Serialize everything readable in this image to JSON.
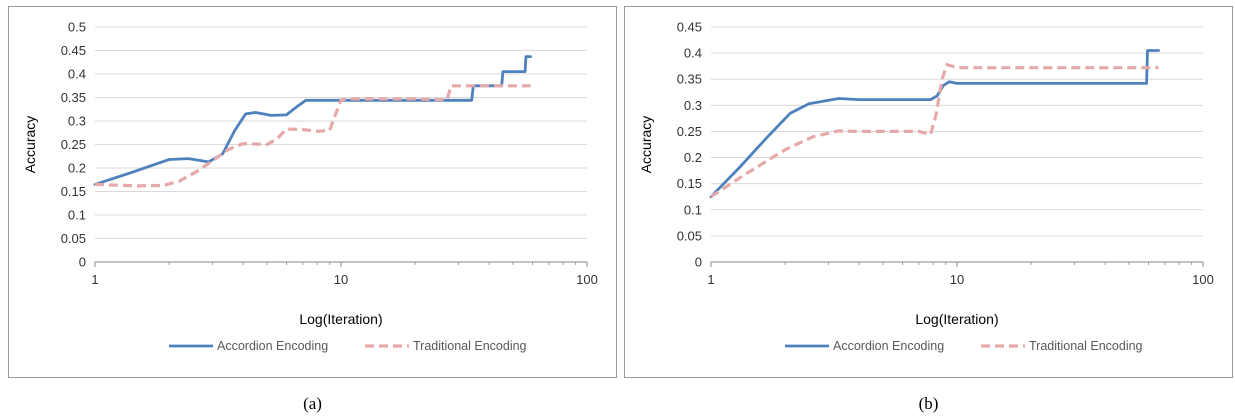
{
  "colors": {
    "accordion": "#4f81bd",
    "traditional": "#e6a9a9",
    "grid": "#d9d9d9",
    "axis": "#868686"
  },
  "chart_data": [
    {
      "type": "line",
      "caption": "(a)",
      "xlabel": "Log(Iteration)",
      "ylabel": "Accuracy",
      "x_scale": "log",
      "xlim": [
        1,
        100
      ],
      "ylim": [
        0,
        0.5
      ],
      "xticks": [
        "1",
        "10",
        "100"
      ],
      "yticks": [
        "0",
        "0.05",
        "0.1",
        "0.15",
        "0.2",
        "0.25",
        "0.3",
        "0.35",
        "0.4",
        "0.45",
        "0.5"
      ],
      "legend": "bottom",
      "grid": true,
      "series": [
        {
          "name": "Accordion Encoding",
          "style": "solid",
          "points": [
            [
              1,
              0.165
            ],
            [
              1.4,
              0.19
            ],
            [
              2,
              0.218
            ],
            [
              2.4,
              0.22
            ],
            [
              2.9,
              0.213
            ],
            [
              3.3,
              0.23
            ],
            [
              3.7,
              0.28
            ],
            [
              4.1,
              0.315
            ],
            [
              4.5,
              0.318
            ],
            [
              5.2,
              0.312
            ],
            [
              6.0,
              0.313
            ],
            [
              6.6,
              0.33
            ],
            [
              7.2,
              0.344
            ],
            [
              8,
              0.344
            ],
            [
              10,
              0.344
            ],
            [
              20,
              0.344
            ],
            [
              34,
              0.344
            ],
            [
              34.5,
              0.375
            ],
            [
              45,
              0.375
            ],
            [
              45.5,
              0.405
            ],
            [
              56,
              0.405
            ],
            [
              56.5,
              0.437
            ],
            [
              59,
              0.437
            ]
          ]
        },
        {
          "name": "Traditional  Encoding",
          "style": "dashed",
          "points": [
            [
              1,
              0.165
            ],
            [
              1.5,
              0.162
            ],
            [
              1.9,
              0.163
            ],
            [
              2.2,
              0.172
            ],
            [
              2.6,
              0.193
            ],
            [
              3.0,
              0.215
            ],
            [
              3.5,
              0.24
            ],
            [
              4.0,
              0.252
            ],
            [
              5.0,
              0.25
            ],
            [
              5.5,
              0.262
            ],
            [
              6.0,
              0.283
            ],
            [
              7.0,
              0.282
            ],
            [
              8.0,
              0.278
            ],
            [
              9.0,
              0.28
            ],
            [
              9.6,
              0.32
            ],
            [
              10,
              0.345
            ],
            [
              11,
              0.347
            ],
            [
              20,
              0.347
            ],
            [
              27,
              0.345
            ],
            [
              28,
              0.375
            ],
            [
              35,
              0.375
            ],
            [
              59,
              0.375
            ]
          ]
        }
      ]
    },
    {
      "type": "line",
      "caption": "(b)",
      "xlabel": "Log(Iteration)",
      "ylabel": "Accuracy",
      "x_scale": "log",
      "xlim": [
        1,
        100
      ],
      "ylim": [
        0,
        0.45
      ],
      "xticks": [
        "1",
        "10",
        "100"
      ],
      "yticks": [
        "0",
        "0.05",
        "0.1",
        "0.15",
        "0.2",
        "0.25",
        "0.3",
        "0.35",
        "0.4",
        "0.45"
      ],
      "legend": "bottom",
      "grid": true,
      "series": [
        {
          "name": "Accordion Encoding",
          "style": "solid",
          "points": [
            [
              1,
              0.125
            ],
            [
              1.3,
              0.18
            ],
            [
              1.7,
              0.24
            ],
            [
              2.1,
              0.285
            ],
            [
              2.5,
              0.303
            ],
            [
              3.3,
              0.313
            ],
            [
              4.0,
              0.311
            ],
            [
              5,
              0.311
            ],
            [
              6,
              0.311
            ],
            [
              7,
              0.311
            ],
            [
              7.8,
              0.311
            ],
            [
              8.3,
              0.318
            ],
            [
              8.8,
              0.338
            ],
            [
              9.3,
              0.345
            ],
            [
              10,
              0.342
            ],
            [
              20,
              0.342
            ],
            [
              59,
              0.342
            ],
            [
              59.5,
              0.405
            ],
            [
              66,
              0.405
            ]
          ]
        },
        {
          "name": "Traditional  Encoding",
          "style": "dashed",
          "points": [
            [
              1,
              0.125
            ],
            [
              1.4,
              0.17
            ],
            [
              2,
              0.215
            ],
            [
              2.6,
              0.24
            ],
            [
              3.3,
              0.251
            ],
            [
              4.0,
              0.25
            ],
            [
              5,
              0.25
            ],
            [
              6,
              0.25
            ],
            [
              7,
              0.25
            ],
            [
              7.8,
              0.244
            ],
            [
              8.2,
              0.28
            ],
            [
              8.7,
              0.35
            ],
            [
              9.1,
              0.378
            ],
            [
              10,
              0.372
            ],
            [
              20,
              0.372
            ],
            [
              66,
              0.372
            ]
          ]
        }
      ]
    }
  ]
}
